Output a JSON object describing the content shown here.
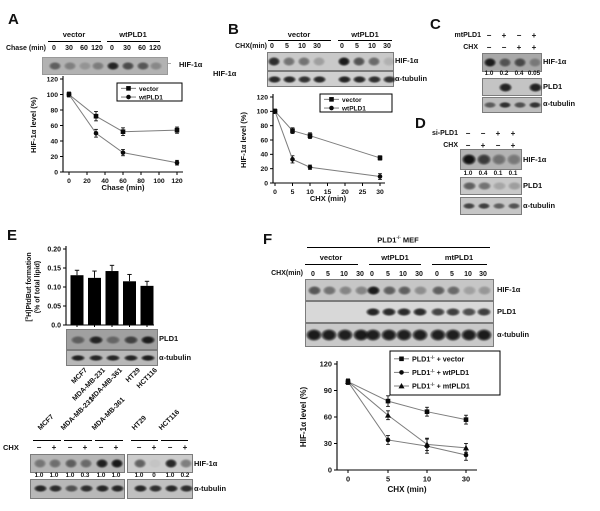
{
  "panels": {
    "A": {
      "label": "A",
      "row_label": "Chase (min)",
      "groups": [
        "vector",
        "wtPLD1"
      ],
      "lanes": [
        "0",
        "30",
        "60",
        "120",
        "0",
        "30",
        "60",
        "120"
      ],
      "arrow_icon": "←",
      "arrow_label": "HIF-1α",
      "strips": [
        {
          "name": "HIF-1α",
          "bands": [
            0.5,
            0.3,
            0.18,
            0.32,
            0.85,
            0.62,
            0.55,
            0.25
          ]
        }
      ]
    },
    "B": {
      "label": "B",
      "row_label": "CHX(min)",
      "groups": [
        "vector",
        "wtPLD1"
      ],
      "lanes": [
        "0",
        "5",
        "10",
        "30",
        "0",
        "5",
        "10",
        "30"
      ],
      "side_label": "HIF-1α",
      "strips": [
        {
          "name": "HIF-1α",
          "bands": [
            0.82,
            0.45,
            0.45,
            0.22,
            0.93,
            0.62,
            0.5,
            0.12
          ]
        },
        {
          "name": "α-tubulin",
          "bands": [
            0.85,
            0.85,
            0.8,
            0.85,
            0.88,
            0.85,
            0.82,
            0.8
          ]
        }
      ]
    },
    "C": {
      "label": "C",
      "condition_rows": [
        {
          "label": "mtPLD1",
          "signs": [
            "−",
            "+",
            "−",
            "+"
          ]
        },
        {
          "label": "CHX",
          "signs": [
            "−",
            "−",
            "+",
            "+"
          ]
        }
      ],
      "strips": [
        {
          "name": "HIF-1α",
          "bands": [
            0.9,
            0.55,
            0.62,
            0.3
          ],
          "quant": [
            "1.0",
            "0.2",
            "0.4",
            "0.05"
          ]
        },
        {
          "name": "PLD1",
          "bands": [
            0,
            0.88,
            0,
            0.88
          ]
        },
        {
          "name": "α-tubulin",
          "bands": [
            0.55,
            0.8,
            0.62,
            0.78
          ]
        }
      ]
    },
    "D": {
      "label": "D",
      "condition_rows": [
        {
          "label": "si-PLD1",
          "signs": [
            "−",
            "−",
            "+",
            "+"
          ]
        },
        {
          "label": "CHX",
          "signs": [
            "−",
            "+",
            "−",
            "+"
          ]
        }
      ],
      "strips": [
        {
          "name": "HIF-1α",
          "bands": [
            0.97,
            0.72,
            0.4,
            0.35
          ],
          "quant": [
            "1.0",
            "0.4",
            "0.1",
            "0.1"
          ]
        },
        {
          "name": "PLD1",
          "bands": [
            0.55,
            0.45,
            0.18,
            0.22
          ]
        },
        {
          "name": "α-tubulin",
          "bands": [
            0.7,
            0.72,
            0.55,
            0.62
          ]
        }
      ]
    },
    "E": {
      "label": "E",
      "cell_lines": [
        "MCF7",
        "MDA-MB-231",
        "MDA-MB-361",
        "HT29",
        "HCT116"
      ],
      "strips": [
        {
          "name": "PLD1",
          "bands": [
            0.45,
            0.85,
            0.4,
            0.65,
            0.9
          ]
        },
        {
          "name": "α-tubulin",
          "bands": [
            0.88,
            0.85,
            0.85,
            0.86,
            0.9
          ]
        }
      ]
    },
    "E2": {
      "row_label": "CHX",
      "cell_lines": [
        "MCF7",
        "MDA-MB-231",
        "MDA-MB-361",
        "HT29",
        "HCT116"
      ],
      "signs": [
        "−",
        "+",
        "−",
        "+",
        "−",
        "+",
        "−",
        "+",
        "−",
        "+"
      ],
      "quant": [
        "1.0",
        "1.0",
        "1.0",
        "0.3",
        "1.0",
        "1.0",
        "1.0",
        "0",
        "1.0",
        "0.2"
      ],
      "strips": [
        {
          "name": "HIF-1α",
          "bands": [
            0.38,
            0.42,
            0.52,
            0.45,
            0.88,
            0.93,
            0.55,
            0.04,
            0.85,
            0.4
          ]
        },
        {
          "name": "α-tubulin",
          "bands": [
            0.85,
            0.82,
            0.6,
            0.8,
            0.85,
            0.85,
            0.85,
            0.8,
            0.85,
            0.82
          ]
        }
      ]
    },
    "F": {
      "label": "F",
      "header": {
        "pre": "PLD1",
        "sup": "-/-",
        "post": " MEF"
      },
      "row_label": "CHX(min)",
      "groups": [
        "vector",
        "wtPLD1",
        "mtPLD1"
      ],
      "lanes": [
        "0",
        "5",
        "10",
        "30",
        "0",
        "5",
        "10",
        "30",
        "0",
        "5",
        "10",
        "30"
      ],
      "strips": [
        {
          "name": "HIF-1α",
          "bands": [
            0.6,
            0.45,
            0.35,
            0.35,
            0.92,
            0.55,
            0.55,
            0.3,
            0.55,
            0.5,
            0.2,
            0.25
          ]
        },
        {
          "name": "PLD1",
          "bands": [
            0,
            0,
            0,
            0,
            0.88,
            0.85,
            0.85,
            0.85,
            0.72,
            0.75,
            0.68,
            0.75
          ]
        },
        {
          "name": "α-tubulin",
          "bands": [
            0.92,
            0.9,
            0.9,
            0.92,
            0.9,
            0.9,
            0.9,
            0.9,
            0.9,
            0.9,
            0.9,
            0.92
          ]
        }
      ]
    }
  },
  "chart_data": [
    {
      "id": "A",
      "type": "line",
      "xlabel": "Chase (min)",
      "ylabel": "HIF-1α level (%)",
      "x": [
        0,
        30,
        60,
        120
      ],
      "xticks": [
        0,
        20,
        40,
        60,
        80,
        100,
        120
      ],
      "yticks": [
        0,
        20,
        40,
        60,
        80,
        100,
        120
      ],
      "xlim": [
        0,
        120
      ],
      "ylim": [
        0,
        120
      ],
      "legend_position": "top-right",
      "grid": false,
      "series": [
        {
          "name": "vector",
          "marker": "square",
          "values": [
            100,
            72,
            52,
            54
          ],
          "errors": [
            3,
            6,
            5,
            4
          ]
        },
        {
          "name": "wtPLD1",
          "marker": "circle",
          "values": [
            100,
            50,
            25,
            12
          ],
          "errors": [
            3,
            5,
            4,
            3
          ]
        }
      ]
    },
    {
      "id": "B",
      "type": "line",
      "xlabel": "CHX (min)",
      "ylabel": "HIF-1α level (%)",
      "x": [
        0,
        5,
        10,
        30
      ],
      "xticks": [
        0,
        5,
        10,
        15,
        20,
        25,
        30
      ],
      "yticks": [
        0,
        20,
        40,
        60,
        80,
        100,
        120
      ],
      "xlim": [
        0,
        30
      ],
      "ylim": [
        0,
        120
      ],
      "legend_position": "top-right",
      "grid": false,
      "series": [
        {
          "name": "vector",
          "marker": "square",
          "values": [
            100,
            73,
            66,
            35
          ],
          "errors": [
            3,
            4,
            4,
            3
          ]
        },
        {
          "name": "wtPLD1",
          "marker": "circle",
          "values": [
            100,
            33,
            22,
            9
          ],
          "errors": [
            3,
            5,
            3,
            4
          ]
        }
      ]
    },
    {
      "id": "E",
      "type": "bar",
      "ylabel_line1_pre": "[",
      "ylabel_line1_sup": "3",
      "ylabel_line1_post": "H]PtdBut formation",
      "ylabel_line2": "(% of total lipid)",
      "categories": [
        "MCF7",
        "MDA-MB-231",
        "MDA-MB-361",
        "HT29",
        "HCT116"
      ],
      "values": [
        0.131,
        0.124,
        0.142,
        0.115,
        0.103
      ],
      "errors": [
        0.013,
        0.018,
        0.015,
        0.018,
        0.012
      ],
      "yticks": [
        0,
        0.05,
        0.1,
        0.15,
        0.2
      ],
      "ytick_labels": [
        "0.0",
        "0.05",
        "0.10",
        "0.15",
        "0.20"
      ],
      "ylim": [
        0,
        0.2
      ],
      "bar_color": "#000000",
      "grid": false
    },
    {
      "id": "F",
      "type": "line",
      "xlabel": "CHX (min)",
      "ylabel": "HIF-1α level (%)",
      "x_categories": [
        "0",
        "5",
        "10",
        "30"
      ],
      "yticks": [
        0,
        30,
        60,
        90,
        120
      ],
      "ylim": [
        0,
        120
      ],
      "legend_position": "top-right",
      "grid": false,
      "series": [
        {
          "name": "PLD1-/- + vector",
          "name_pre": "PLD1",
          "name_sup": "-/-",
          "name_post": " + vector",
          "marker": "square",
          "values": [
            100,
            78,
            66,
            57
          ],
          "errors": [
            3,
            6,
            5,
            5
          ]
        },
        {
          "name": "PLD1-/- + wtPLD1",
          "name_pre": "PLD1",
          "name_sup": "-/-",
          "name_post": " + wtPLD1",
          "marker": "circle",
          "values": [
            100,
            34,
            27,
            17
          ],
          "errors": [
            3,
            5,
            8,
            6
          ]
        },
        {
          "name": "PLD1-/- + mtPLD1",
          "name_pre": "PLD1",
          "name_sup": "-/-",
          "name_post": " + mtPLD1",
          "marker": "triangle",
          "values": [
            100,
            62,
            29,
            25
          ],
          "errors": [
            3,
            5,
            7,
            5
          ]
        }
      ]
    }
  ]
}
